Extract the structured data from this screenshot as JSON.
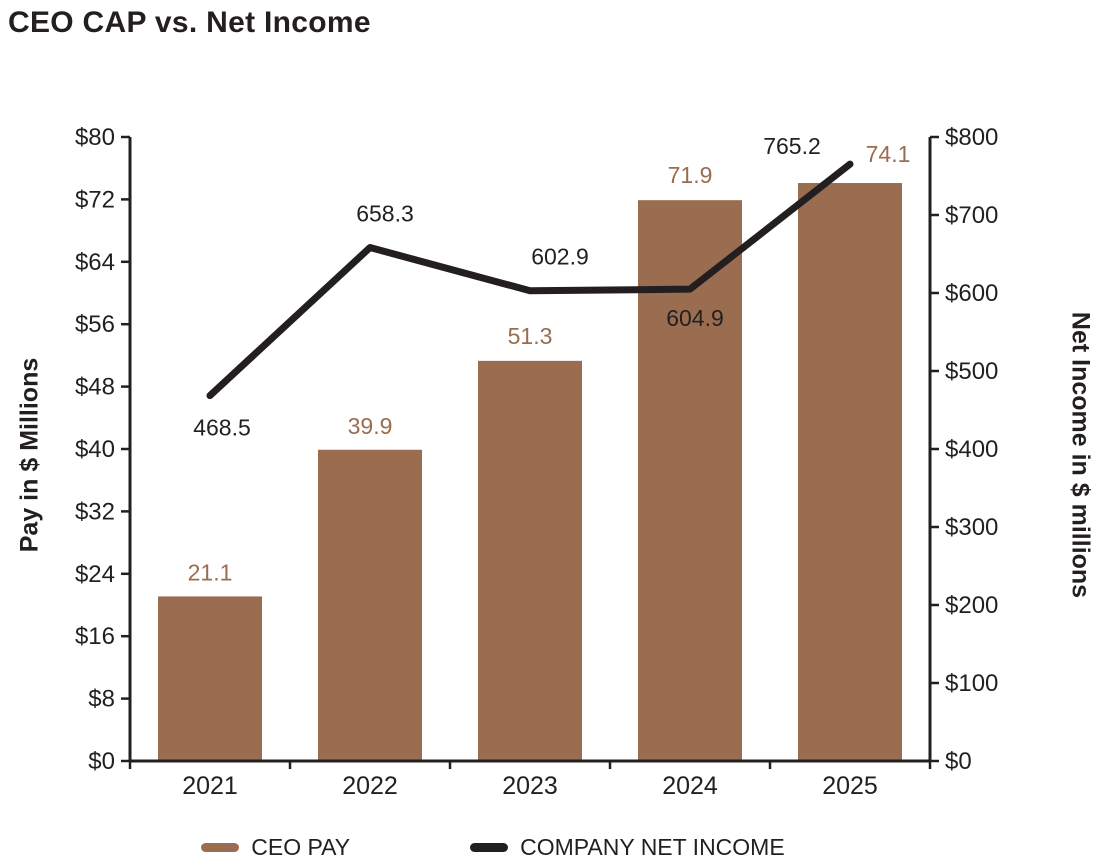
{
  "title": "CEO CAP vs. Net Income",
  "chart_data": {
    "type": "combo",
    "categories": [
      "2021",
      "2022",
      "2023",
      "2024",
      "2025"
    ],
    "series": [
      {
        "name": "CEO PAY",
        "type": "bar",
        "axis": "left",
        "color": "#9a6d50",
        "values": [
          21.1,
          39.9,
          51.3,
          71.9,
          74.1
        ]
      },
      {
        "name": "COMPANY NET INCOME",
        "type": "line",
        "axis": "right",
        "color": "#231f20",
        "values": [
          468.5,
          658.3,
          602.9,
          604.9,
          765.2
        ]
      }
    ],
    "left_axis": {
      "title": "Pay in $ Millions",
      "min": 0,
      "max": 80,
      "step": 8,
      "prefix": "$"
    },
    "right_axis": {
      "title": "Net Income in $ millions",
      "min": 0,
      "max": 800,
      "step": 100,
      "prefix": "$"
    },
    "grid": false,
    "legend": {
      "position": "bottom",
      "items": [
        {
          "label": "CEO PAY",
          "color": "#9a6d50",
          "marker": "bar"
        },
        {
          "label": "COMPANY NET INCOME",
          "color": "#231f20",
          "marker": "line"
        }
      ]
    },
    "value_label_offsets": {
      "bar": [
        [
          0,
          -16
        ],
        [
          0,
          -16
        ],
        [
          0,
          -17
        ],
        [
          0,
          -17
        ],
        [
          38,
          -21
        ]
      ],
      "line": [
        [
          12,
          40
        ],
        [
          15,
          -26
        ],
        [
          30,
          -26
        ],
        [
          5,
          37
        ],
        [
          -58,
          -10
        ]
      ]
    }
  }
}
